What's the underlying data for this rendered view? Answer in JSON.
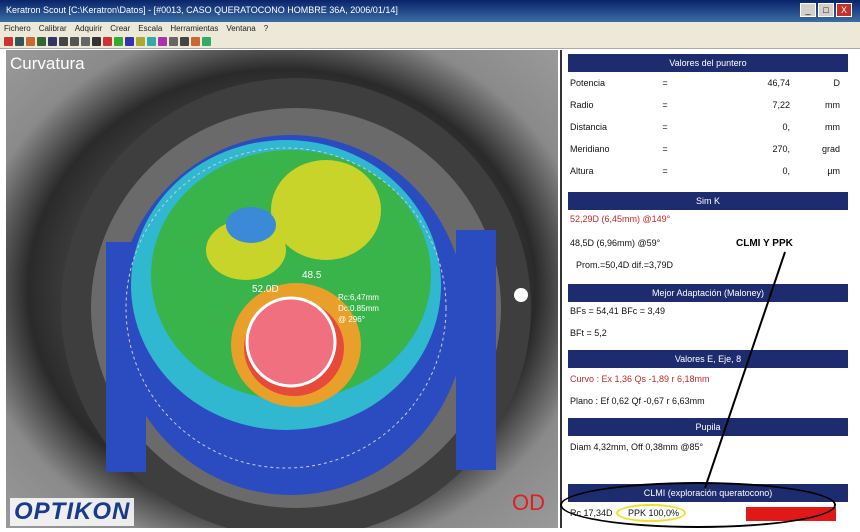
{
  "window": {
    "title": "Keratron Scout [C:\\Keratron\\Datos] - [#0013, CASO QUERATOCONO HOMBRE 36A, 2006/01/14]",
    "buttons": [
      "_",
      "□",
      "X"
    ]
  },
  "menu": [
    "Fichero",
    "Calibrar",
    "Adquirir",
    "Crear",
    "Escala",
    "Herramientas",
    "Ventana",
    "?"
  ],
  "view": {
    "title": "Curvatura",
    "brand": "OPTIKON",
    "eye": "OD",
    "overlay": {
      "k_max": "52.0D",
      "k_local": "48.5",
      "ppk_line1": "Rc:6,47mm",
      "ppk_line2": "Dc:0.85mm",
      "ppk_line3": "@ 296°"
    }
  },
  "panel": {
    "puntero": {
      "header": "Valores del puntero",
      "rows": [
        {
          "label": "Potencia",
          "eq": "=",
          "value": "46,74",
          "unit": "D"
        },
        {
          "label": "Radio",
          "eq": "=",
          "value": "7,22",
          "unit": "mm"
        },
        {
          "label": "Distancia",
          "eq": "=",
          "value": "0,",
          "unit": "mm"
        },
        {
          "label": "Meridiano",
          "eq": "=",
          "value": "270,",
          "unit": "grad"
        },
        {
          "label": "Altura",
          "eq": "=",
          "value": "0,",
          "unit": "µm"
        }
      ]
    },
    "simk": {
      "header": "Sim K",
      "k1": "52,29D (6,45mm) @149°",
      "k2": "48,5D (6,96mm) @59°",
      "prom": "Prom.=50,4D  dif.=3,79D"
    },
    "mejor": {
      "header": "Mejor Adaptación (Maloney)",
      "line1": "BFs = 54,41  BFc = 3,49",
      "line2": "BFt = 5,2"
    },
    "eje": {
      "header": "Valores E, Eje, 8",
      "line1": "Curvo : Ex 1,36 Qs -1,89 r 6,18mm",
      "line2": "Plano : Ef 0,62 Qf -0,67 r 6,63mm"
    },
    "pupila": {
      "header": "Pupila",
      "line1": "Diam 4,32mm, Off 0,38mm @85°"
    },
    "clmi": {
      "header": "CLMI (exploración queratocono)",
      "line1": "Rc 17,34D",
      "ppk": "PPK 100,0%"
    }
  },
  "annotation": {
    "label": "CLMI Y PPK"
  },
  "colors": {
    "header": "#1c2c6e",
    "accent_red": "#c8282a",
    "map_ring": "#ffffff"
  }
}
